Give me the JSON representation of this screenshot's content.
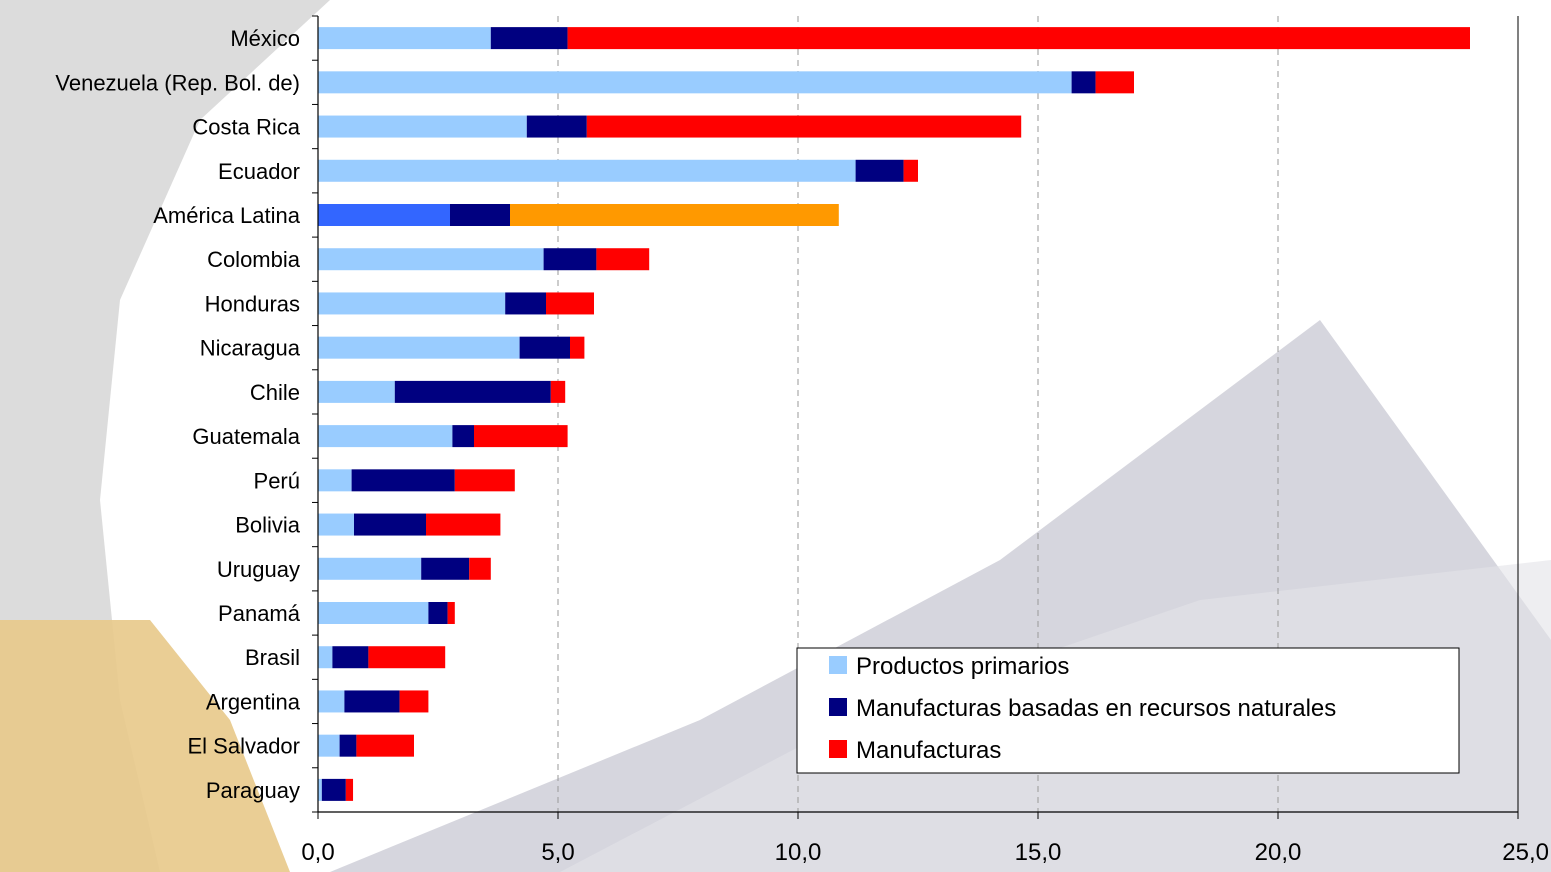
{
  "chart_data": {
    "type": "bar",
    "orientation": "horizontal",
    "stacked": true,
    "categories": [
      "México",
      "Venezuela (Rep. Bol. de)",
      "Costa Rica",
      "Ecuador",
      "América Latina",
      "Colombia",
      "Honduras",
      "Nicaragua",
      "Chile",
      "Guatemala",
      "Perú",
      "Bolivia",
      "Uruguay",
      "Panamá",
      "Brasil",
      "Argentina",
      "El Salvador",
      "Paraguay"
    ],
    "series": [
      {
        "name": "Productos primarios",
        "color": "#99ccff",
        "values": [
          3.6,
          15.7,
          4.35,
          11.2,
          2.75,
          4.7,
          3.9,
          4.2,
          1.6,
          2.8,
          0.7,
          0.75,
          2.15,
          2.3,
          0.3,
          0.55,
          0.45,
          0.08
        ]
      },
      {
        "name": "Manufacturas basadas en recursos naturales",
        "color": "#000080",
        "values": [
          1.6,
          0.5,
          1.25,
          1.0,
          1.25,
          1.1,
          0.85,
          1.05,
          3.25,
          0.45,
          2.15,
          1.5,
          1.0,
          0.4,
          0.75,
          1.15,
          0.35,
          0.5
        ]
      },
      {
        "name": "Manufacturas",
        "color": "#ff0000",
        "values": [
          18.8,
          0.8,
          9.05,
          0.3,
          6.85,
          1.1,
          1.0,
          0.3,
          0.3,
          1.95,
          1.25,
          1.55,
          0.45,
          0.15,
          1.6,
          0.6,
          1.2,
          0.15
        ]
      }
    ],
    "highlight": {
      "category": "América Latina",
      "colors": [
        "#3366ff",
        "#000080",
        "#ff9900"
      ]
    },
    "xlim": [
      0,
      25
    ],
    "xticks": [
      0,
      5,
      10,
      15,
      20,
      25
    ],
    "xtick_labels": [
      "0,0",
      "5,0",
      "10,0",
      "15,0",
      "20,0",
      "25,0"
    ],
    "grid": "vertical-dashed",
    "legend_position": "bottom-right",
    "title": "",
    "xlabel": "",
    "ylabel": ""
  }
}
